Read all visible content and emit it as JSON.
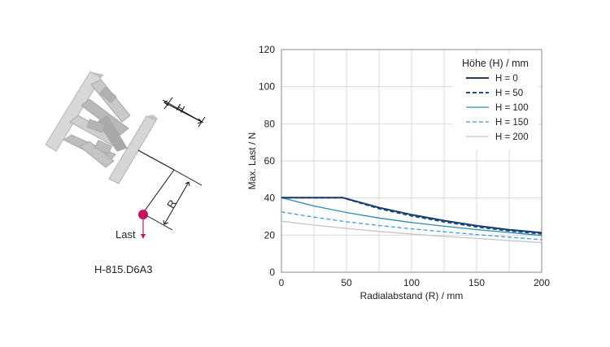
{
  "diagram": {
    "height_label": "H",
    "radius_label": "R",
    "load_label": "Last",
    "model_label": "H-815.D6A3",
    "load_color": "#c0185a"
  },
  "chart_data": {
    "type": "line",
    "xlabel": "Radialabstand (R) / mm",
    "ylabel": "Max. Last / N",
    "xlim": [
      0,
      200
    ],
    "ylim": [
      0,
      120
    ],
    "xticks": [
      0,
      50,
      100,
      150,
      200
    ],
    "yticks": [
      0,
      20,
      40,
      60,
      80,
      100,
      120
    ],
    "grid": true,
    "legend_title": "Höhe (H) / mm",
    "legend_position": "top-right",
    "series": [
      {
        "name": "H = 0",
        "color": "#1a3d6d",
        "style": "solid",
        "width": 2,
        "x": [
          0,
          25,
          47,
          75,
          100,
          125,
          150,
          175,
          200
        ],
        "y": [
          40.2,
          40.2,
          40.2,
          34.8,
          31.0,
          27.8,
          25.1,
          22.9,
          21.3
        ]
      },
      {
        "name": "H = 50",
        "color": "#1f4f86",
        "style": "dashed",
        "width": 2,
        "x": [
          0,
          25,
          47,
          75,
          100,
          125,
          150,
          175,
          200
        ],
        "y": [
          40.2,
          40.2,
          40.2,
          34.3,
          30.4,
          27.2,
          24.5,
          22.3,
          20.7
        ]
      },
      {
        "name": "H = 100",
        "color": "#2a8bb0",
        "style": "solid",
        "width": 1.3,
        "x": [
          0,
          25,
          50,
          75,
          100,
          125,
          150,
          175,
          200
        ],
        "y": [
          40.2,
          35.7,
          32.2,
          29.2,
          26.8,
          24.8,
          23.0,
          21.4,
          19.8
        ]
      },
      {
        "name": "H = 150",
        "color": "#3f9ed6",
        "style": "dashed",
        "width": 1.3,
        "x": [
          0,
          25,
          50,
          75,
          100,
          125,
          150,
          175,
          200
        ],
        "y": [
          32.5,
          29.7,
          27.2,
          25.2,
          23.4,
          21.8,
          20.3,
          18.9,
          17.5
        ]
      },
      {
        "name": "H = 200",
        "color": "#c4c4c4",
        "style": "solid",
        "width": 1.3,
        "x": [
          0,
          25,
          50,
          75,
          100,
          125,
          150,
          175,
          200
        ],
        "y": [
          27.5,
          25.4,
          23.6,
          22.0,
          20.6,
          19.3,
          18.2,
          17.1,
          16.0
        ]
      }
    ]
  }
}
